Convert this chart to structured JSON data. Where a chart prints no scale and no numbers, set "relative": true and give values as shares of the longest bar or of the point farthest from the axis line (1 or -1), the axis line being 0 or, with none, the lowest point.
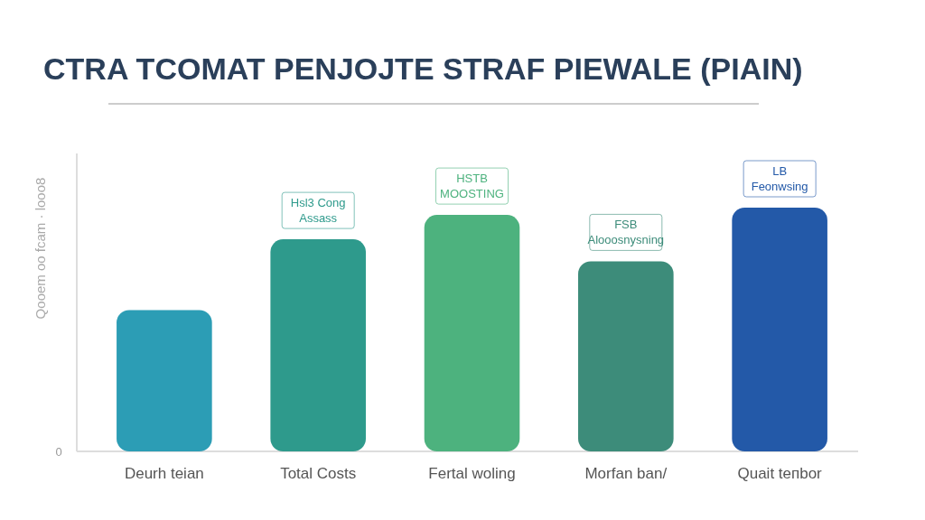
{
  "chart_data": {
    "type": "bar",
    "title": "CTRA TCOMAT PENJOJTE STRAF PIEWALE (PIAIN)",
    "ylabel": "Qooem oo fcam · looo8",
    "relative": true,
    "categories": [
      "Deurh teian",
      "Total Costs",
      "Fertal woling",
      "Morfan ban/",
      "Quait teпbor"
    ],
    "values": [
      0.58,
      0.87,
      0.97,
      0.78,
      1
    ],
    "colors": [
      "#2c9db5",
      "#2e9a8c",
      "#4db27e",
      "#3d8c7a",
      "#2359a8"
    ],
    "annotations": [
      "0",
      "Hsl3 Cong\nAssass",
      "HSTB\nMOOSTING",
      "FSB\nAlooosnysning",
      "LB\nFeonwsing"
    ]
  }
}
